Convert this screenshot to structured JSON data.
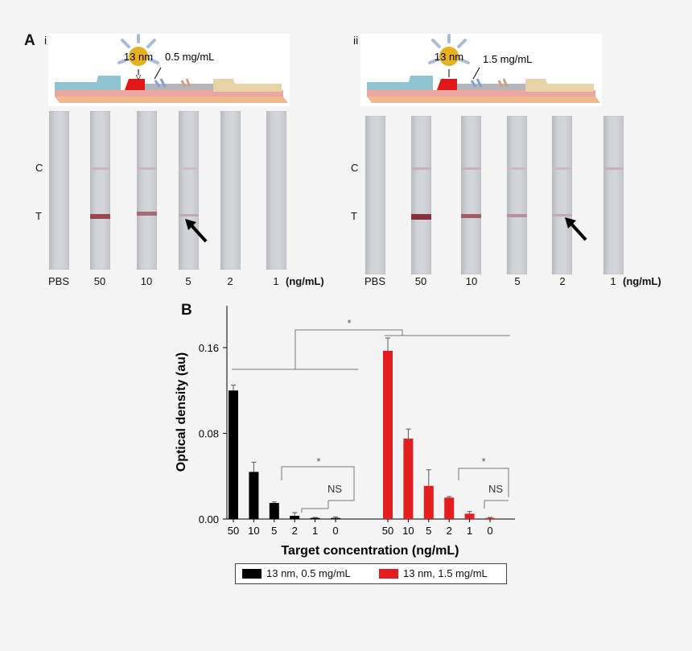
{
  "panel_a": {
    "letter": "A",
    "left": {
      "sub": "i",
      "np_label": "13 nm",
      "conc_label": "0.5 mg/mL",
      "lanes": [
        "PBS",
        "50",
        "10",
        "5",
        "2",
        "1"
      ],
      "unit": "(ng/mL)",
      "control_label": "C",
      "test_label": "T"
    },
    "right": {
      "sub": "ii",
      "np_label": "13 nm",
      "conc_label": "1.5 mg/mL",
      "lanes": [
        "PBS",
        "50",
        "10",
        "5",
        "2",
        "1"
      ],
      "unit": "(ng/mL)",
      "control_label": "C",
      "test_label": "T"
    }
  },
  "panel_b": {
    "letter": "B",
    "significance": {
      "star": "*",
      "ns": "NS"
    }
  },
  "chart_data": {
    "type": "bar",
    "title": "",
    "xlabel": "Target concentration (ng/mL)",
    "ylabel": "Optical density (au)",
    "ylim": [
      0,
      0.19
    ],
    "yticks": [
      "0.00",
      "0.08",
      "0.16"
    ],
    "ytick_values": [
      0,
      0.08,
      0.16
    ],
    "series": [
      {
        "name": "13 nm, 0.5 mg/mL",
        "color": "#000000",
        "categories": [
          "50",
          "10",
          "5",
          "2",
          "1",
          "0"
        ],
        "values": [
          0.12,
          0.044,
          0.015,
          0.003,
          0.001,
          0.001
        ],
        "errors": [
          0.005,
          0.009,
          0.001,
          0.003,
          0.0005,
          0.001
        ]
      },
      {
        "name": "13 nm, 1.5 mg/mL",
        "color": "#e41e1e",
        "categories": [
          "50",
          "10",
          "5",
          "2",
          "1",
          "0"
        ],
        "values": [
          0.157,
          0.075,
          0.031,
          0.02,
          0.005,
          0.001
        ],
        "errors": [
          0.012,
          0.009,
          0.015,
          0.001,
          0.002,
          0.0005
        ]
      }
    ]
  }
}
